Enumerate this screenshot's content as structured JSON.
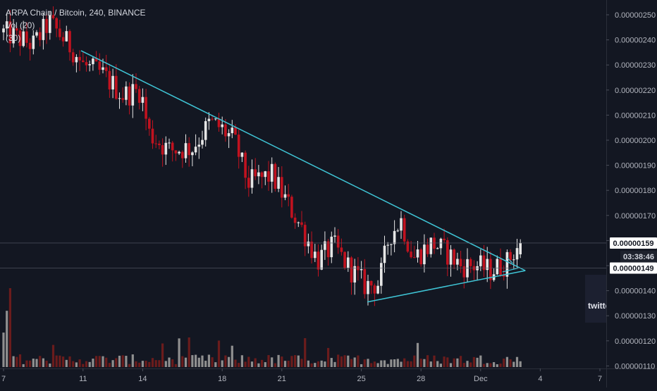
{
  "legend": {
    "symbol": "ARPA Chain / Bitcoin, 240, BINANCE",
    "volume": "Vol (20)",
    "indicator": "(30)"
  },
  "watermark": "twitte",
  "colors": {
    "background": "#131722",
    "up": "#e6e6e6",
    "down": "#c1121f",
    "vol_up": "#8f8f8f",
    "vol_down": "#6b1c1c",
    "trendline": "#3fc5d6",
    "axis_text": "#b2b5be",
    "last_price_bg": "#ffffff",
    "last_price_text": "#131722"
  },
  "chart_data": {
    "type": "candlestick",
    "title": "ARPA Chain / Bitcoin, 240, BINANCE",
    "y_axis": {
      "ticks": [
        "0.00000250",
        "0.00000240",
        "0.00000230",
        "0.00000220",
        "0.00000210",
        "0.00000200",
        "0.00000190",
        "0.00000180",
        "0.00000170",
        "0.00000160",
        "0.00000150",
        "0.00000140",
        "0.00000130",
        "0.00000120",
        "0.00000110"
      ],
      "ylim": [
        1.1e-06,
        2.5e-06
      ]
    },
    "x_axis": {
      "ticks": [
        "7",
        "11",
        "14",
        "18",
        "21",
        "25",
        "28",
        "Dec",
        "4",
        "7"
      ],
      "xlim_days": [
        "Nov 7",
        "Dec 7"
      ]
    },
    "price_labels": [
      {
        "label": "current",
        "value": "0.00000159"
      },
      {
        "label": "countdown",
        "value": "03:38:46"
      },
      {
        "label": "level",
        "value": "0.00000149"
      }
    ],
    "trendlines": [
      {
        "name": "upper",
        "from": [
          "Nov 10.9",
          2.357e-06
        ],
        "to": [
          "Dec 3.25",
          1.48e-06
        ]
      },
      {
        "name": "lower",
        "from": [
          "Nov 25.3",
          1.355e-06
        ],
        "to": [
          "Dec 3.25",
          1.48e-06
        ]
      }
    ],
    "candles_anchor_path": [
      [
        "Nov 7.0",
        2.43e-06
      ],
      [
        "Nov 8.5",
        2.38e-06
      ],
      [
        "Nov 9.3",
        2.47e-06
      ],
      [
        "Nov 10.5",
        2.36e-06
      ],
      [
        "Nov 11.0",
        2.3e-06
      ],
      [
        "Nov 12.0",
        2.26e-06
      ],
      [
        "Nov 13.0",
        2.18e-06
      ],
      [
        "Nov 13.9",
        2.2e-06
      ],
      [
        "Nov 14.3",
        2.03e-06
      ],
      [
        "Nov 15.3",
        1.96e-06
      ],
      [
        "Nov 16.5",
        1.97e-06
      ],
      [
        "Nov 17.4",
        2.07e-06
      ],
      [
        "Nov 17.9",
        2.05e-06
      ],
      [
        "Nov 18.6",
        2e-06
      ],
      [
        "Nov 19.3",
        1.83e-06
      ],
      [
        "Nov 20.5",
        1.86e-06
      ],
      [
        "Nov 21.2",
        1.76e-06
      ],
      [
        "Nov 22.0",
        1.65e-06
      ],
      [
        "Nov 22.8",
        1.52e-06
      ],
      [
        "Nov 23.6",
        1.58e-06
      ],
      [
        "Nov 24.3",
        1.5e-06
      ],
      [
        "Nov 25.2",
        1.42e-06
      ],
      [
        "Nov 25.9",
        1.43e-06
      ],
      [
        "Nov 26.4",
        1.62e-06
      ],
      [
        "Nov 27.0",
        1.68e-06
      ],
      [
        "Nov 27.6",
        1.53e-06
      ],
      [
        "Nov 28.6",
        1.59e-06
      ],
      [
        "Nov 29.3",
        1.55e-06
      ],
      [
        "Nov 30.0",
        1.5e-06
      ],
      [
        "Nov 30.8",
        1.5e-06
      ],
      [
        "Dec 1.5",
        1.48e-06
      ],
      [
        "Dec 2.3",
        1.51e-06
      ],
      [
        "Dec 2.8",
        1.57e-06
      ],
      [
        "Dec 3.1",
        1.59e-06
      ]
    ]
  }
}
